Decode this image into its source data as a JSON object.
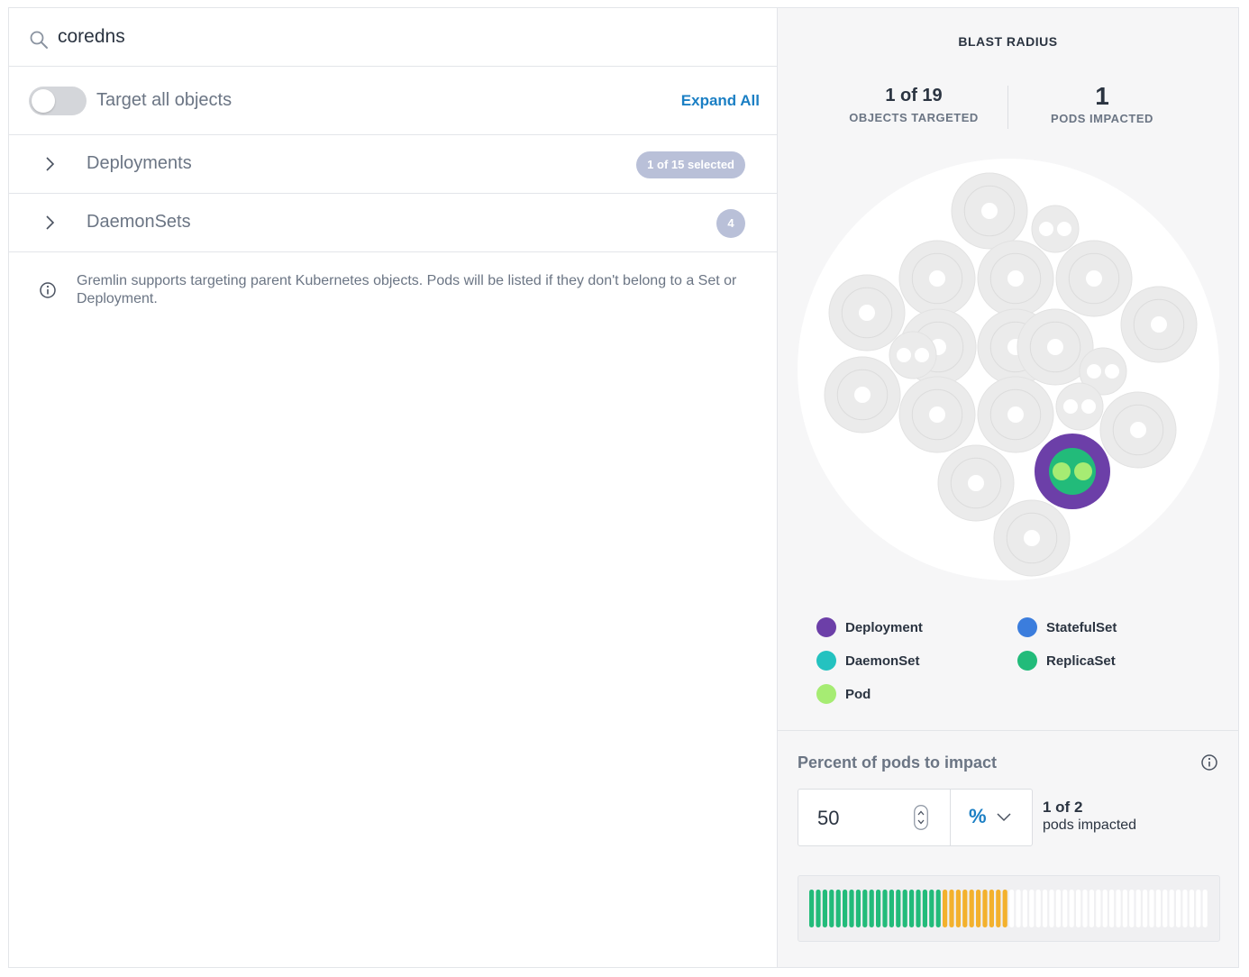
{
  "search": {
    "value": "coredns",
    "icon": "search-icon"
  },
  "targeting": {
    "toggle_label": "Target all objects",
    "toggle_on": false,
    "expand_all_label": "Expand All"
  },
  "groups": [
    {
      "label": "Deployments",
      "badge": "1 of 15 selected",
      "badge_style": "pill"
    },
    {
      "label": "DaemonSets",
      "badge": "4",
      "badge_style": "circle"
    }
  ],
  "info_note": "Gremlin supports targeting parent Kubernetes objects. Pods will be listed if they don't belong to a Set or Deployment.",
  "blast_radius": {
    "title": "BLAST RADIUS",
    "objects_targeted_value": "1 of 19",
    "objects_targeted_label": "OBJECTS TARGETED",
    "pods_impacted_value": "1",
    "pods_impacted_label": "PODS IMPACTED"
  },
  "legend": [
    {
      "label": "Deployment",
      "color": "#6c3fa8"
    },
    {
      "label": "StatefulSet",
      "color": "#3b7ddd"
    },
    {
      "label": "DaemonSet",
      "color": "#24c2c0"
    },
    {
      "label": "ReplicaSet",
      "color": "#22bb7a"
    },
    {
      "label": "Pod",
      "color": "#a6ec73"
    }
  ],
  "percent_panel": {
    "title": "Percent of pods to impact",
    "value": "50",
    "unit": "%",
    "impact_count": "1 of 2",
    "impact_label": "pods impacted"
  },
  "impact_bar": {
    "total_segments": 60,
    "green_segments": 20,
    "orange_segments": 10,
    "colors": {
      "green": "#22bb7a",
      "orange": "#f3b12d",
      "empty": "#ffffff"
    }
  },
  "colors": {
    "accent": "#1b7fc4",
    "muted_text": "#6b7584",
    "badge": "#b9c0d8",
    "bubble_gray": "#ebebeb"
  }
}
